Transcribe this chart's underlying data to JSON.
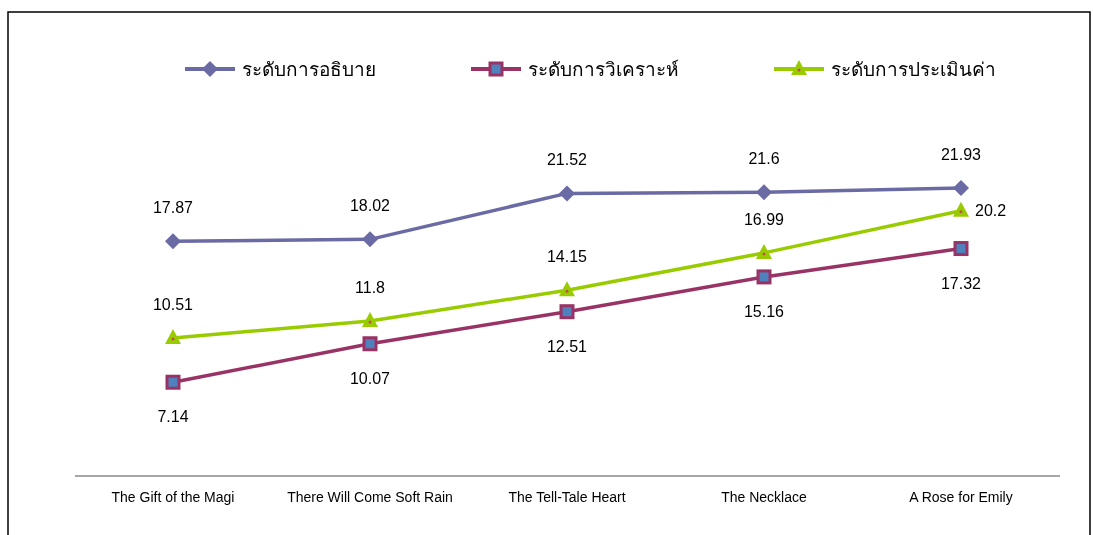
{
  "chart_data": {
    "type": "line",
    "categories": [
      "The Gift of the Magi",
      "There Will Come Soft Rain",
      "The Tell-Tale Heart",
      "The Necklace",
      "A Rose for Emily"
    ],
    "series": [
      {
        "name": "ระดับการอธิบาย",
        "color": "#6a6aa4",
        "marker": "diamond",
        "values": [
          17.87,
          18.02,
          21.52,
          21.6,
          21.93
        ]
      },
      {
        "name": "ระดับการวิเคราะห์",
        "color": "#993366",
        "marker": "square",
        "values": [
          7.14,
          10.07,
          12.51,
          15.16,
          17.32
        ]
      },
      {
        "name": "ระดับการประเมินค่า",
        "color": "#99cc00",
        "marker": "triangle",
        "values": [
          10.51,
          11.8,
          14.15,
          16.99,
          20.2
        ]
      }
    ],
    "data_labels": true,
    "legend": "top"
  }
}
